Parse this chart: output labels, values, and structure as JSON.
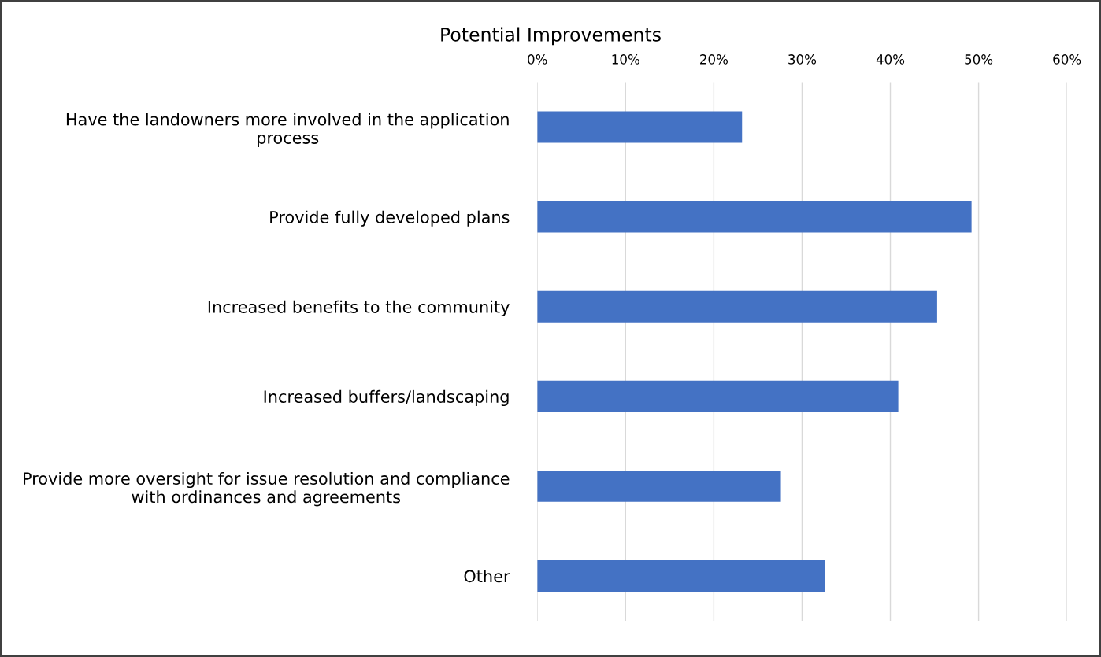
{
  "chart_data": {
    "type": "bar",
    "orientation": "horizontal",
    "title": "Potential Improvements",
    "categories": [
      "Have the landowners more involved in the application\nprocess",
      "Provide fully developed plans",
      "Increased benefits to the community",
      "Increased buffers/landscaping",
      "Provide more oversight for issue resolution and compliance\nwith ordinances and agreements",
      "Other"
    ],
    "values": [
      23.2,
      49.2,
      45.3,
      40.9,
      27.6,
      32.6
    ],
    "color": "#4472c4",
    "xlim": [
      0,
      60
    ],
    "xticks": [
      {
        "value": 0,
        "label": "0%"
      },
      {
        "value": 10,
        "label": "10%"
      },
      {
        "value": 20,
        "label": "20%"
      },
      {
        "value": 30,
        "label": "30%"
      },
      {
        "value": 40,
        "label": "40%"
      },
      {
        "value": 50,
        "label": "50%"
      },
      {
        "value": 60,
        "label": "60%"
      }
    ],
    "grid": "x",
    "legend": false
  }
}
